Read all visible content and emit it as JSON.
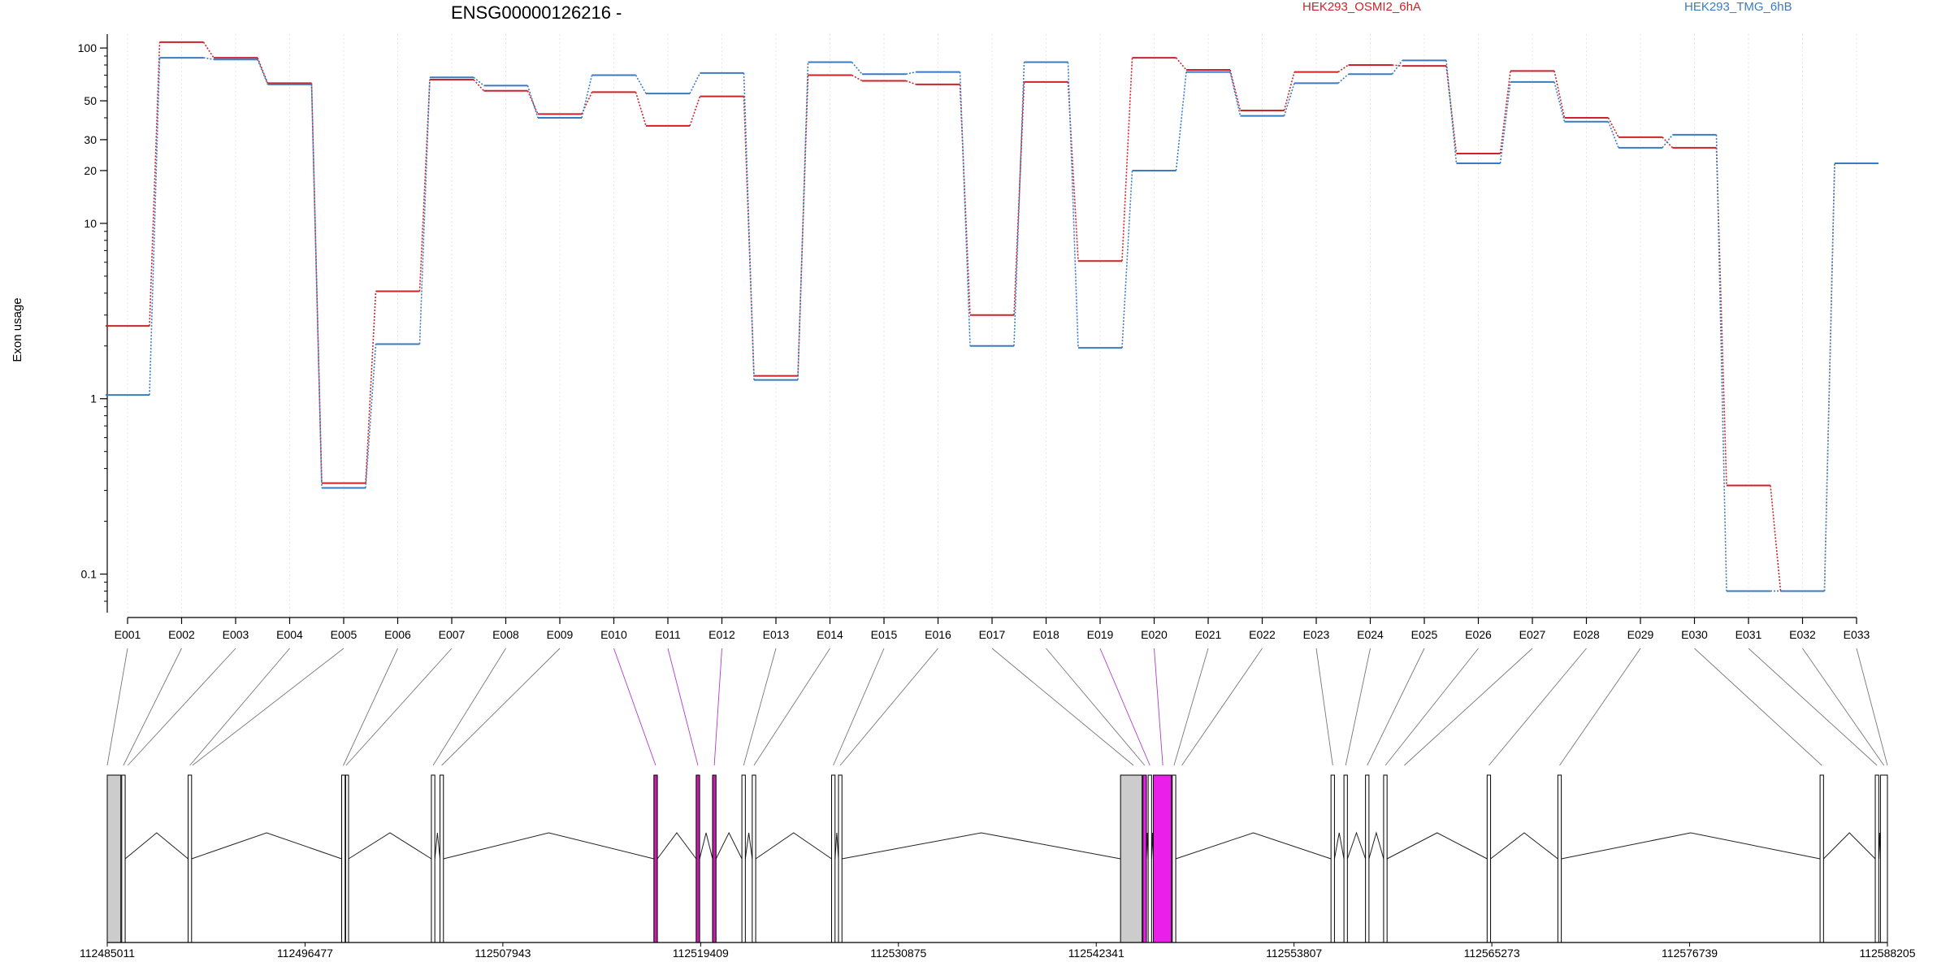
{
  "figure": {
    "title": "ENSG00000126216 -",
    "ylabel": "Exon usage"
  },
  "chart_data": {
    "type": "line",
    "title": "ENSG00000126216 -",
    "ylabel": "Exon usage",
    "xlabel": "",
    "y_scale": "log",
    "ylim": [
      0.07,
      120
    ],
    "y_ticks": [
      0.1,
      1,
      10,
      20,
      30,
      50,
      100
    ],
    "y_tick_labels": [
      "0.1",
      "1",
      "10",
      "20",
      "30",
      "50",
      "100"
    ],
    "grid": "vertical dotted lines at exons",
    "legend_position": "top",
    "categories": [
      "E001",
      "E002",
      "E003",
      "E004",
      "E005",
      "E006",
      "E007",
      "E008",
      "E009",
      "E010",
      "E011",
      "E012",
      "E013",
      "E014",
      "E015",
      "E016",
      "E017",
      "E018",
      "E019",
      "E020",
      "E021",
      "E022",
      "E023",
      "E024",
      "E025",
      "E026",
      "E027",
      "E028",
      "E029",
      "E030",
      "E031",
      "E032",
      "E033"
    ],
    "series": [
      {
        "name": "HEK293_OSMI2_6hA",
        "color": "#cc2229",
        "values": [
          2.6,
          108,
          88,
          63,
          0.33,
          4.1,
          66,
          57,
          42,
          56,
          36,
          53,
          1.35,
          70,
          65,
          62,
          3.0,
          64,
          6.1,
          88,
          75,
          44,
          73,
          80,
          79,
          25,
          74,
          40,
          31,
          27,
          0.32,
          0.08,
          22
        ]
      },
      {
        "name": "HEK293_TMG_6hB",
        "color": "#3a7bbf",
        "values": [
          1.05,
          88,
          86,
          62,
          0.31,
          2.05,
          68,
          61,
          40,
          70,
          55,
          72,
          1.28,
          83,
          71,
          73,
          2.0,
          83,
          1.95,
          20,
          73,
          41,
          63,
          71,
          85,
          22,
          64,
          38,
          27,
          32,
          0.08,
          0.08,
          22
        ]
      }
    ],
    "genomic_axis": {
      "tick_labels": [
        "112485011",
        "112496477",
        "112507943",
        "112519409",
        "112530875",
        "112542341",
        "112553807",
        "112565273",
        "112576739",
        "112588205"
      ],
      "exons": [
        {
          "start": 112485011,
          "end": 112485800,
          "shade": "#cccccc"
        },
        {
          "start": 112485850,
          "end": 112486050,
          "shade": "#ffffff"
        },
        {
          "start": 112489700,
          "end": 112489900,
          "shade": "#ffffff"
        },
        {
          "start": 112498600,
          "end": 112498800,
          "shade": "#ffffff"
        },
        {
          "start": 112498830,
          "end": 112499000,
          "shade": "#ffffff"
        },
        {
          "start": 112503800,
          "end": 112504000,
          "shade": "#ffffff"
        },
        {
          "start": 112504300,
          "end": 112504500,
          "shade": "#ffffff"
        },
        {
          "start": 112516700,
          "end": 112516900,
          "shade": "#c81eae"
        },
        {
          "start": 112519150,
          "end": 112519350,
          "shade": "#c81eae"
        },
        {
          "start": 112520100,
          "end": 112520300,
          "shade": "#c81eae"
        },
        {
          "start": 112521800,
          "end": 112522000,
          "shade": "#ffffff"
        },
        {
          "start": 112522400,
          "end": 112522600,
          "shade": "#ffffff"
        },
        {
          "start": 112527000,
          "end": 112527200,
          "shade": "#ffffff"
        },
        {
          "start": 112527400,
          "end": 112527600,
          "shade": "#ffffff"
        },
        {
          "start": 112543750,
          "end": 112545000,
          "shade": "#cccccc"
        },
        {
          "start": 112545050,
          "end": 112545250,
          "shade": "#ea20ea"
        },
        {
          "start": 112545350,
          "end": 112545550,
          "shade": "#ffffff"
        },
        {
          "start": 112545650,
          "end": 112546700,
          "shade": "#ea20ea"
        },
        {
          "start": 112546750,
          "end": 112546950,
          "shade": "#ffffff"
        },
        {
          "start": 112555950,
          "end": 112556150,
          "shade": "#ffffff"
        },
        {
          "start": 112556700,
          "end": 112556900,
          "shade": "#ffffff"
        },
        {
          "start": 112557950,
          "end": 112558150,
          "shade": "#ffffff"
        },
        {
          "start": 112559000,
          "end": 112559200,
          "shade": "#ffffff"
        },
        {
          "start": 112565000,
          "end": 112565200,
          "shade": "#ffffff"
        },
        {
          "start": 112569100,
          "end": 112569300,
          "shade": "#ffffff"
        },
        {
          "start": 112584300,
          "end": 112584500,
          "shade": "#ffffff"
        },
        {
          "start": 112587500,
          "end": 112587700,
          "shade": "#ffffff"
        },
        {
          "start": 112587800,
          "end": 112588205,
          "shade": "#ffffff"
        }
      ],
      "exon_positions": [
        112485011,
        112485950,
        112486200,
        112489800,
        112489950,
        112498700,
        112498850,
        112503900,
        112504400,
        112516800,
        112519250,
        112520200,
        112521900,
        112522500,
        112527100,
        112527500,
        112544500,
        112545150,
        112545450,
        112546200,
        112546850,
        112547300,
        112556050,
        112556800,
        112558050,
        112559100,
        112560200,
        112565100,
        112569200,
        112584400,
        112587600,
        112588000,
        112588205
      ]
    }
  }
}
